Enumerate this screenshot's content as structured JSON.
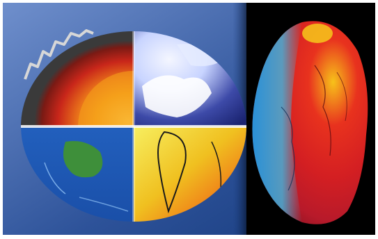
{
  "image": {
    "kind": "photo-illustration",
    "description_visible_text": "",
    "colors": {
      "frame": "#ffffff",
      "left_bg_light": "#5e7dbf",
      "left_bg_dark": "#163a7c",
      "right_bg": "#000000",
      "core": "#f5a01a",
      "mantle": "#c8261a",
      "ocean": "#1f63c8",
      "land": "#3e8f3a",
      "heat_yellow": "#f0e030",
      "heat_red": "#e21f1f",
      "geoid_blue": "#2b8fd0"
    },
    "icons": [
      "earth-cross-section",
      "geoid-potato-earth"
    ]
  }
}
